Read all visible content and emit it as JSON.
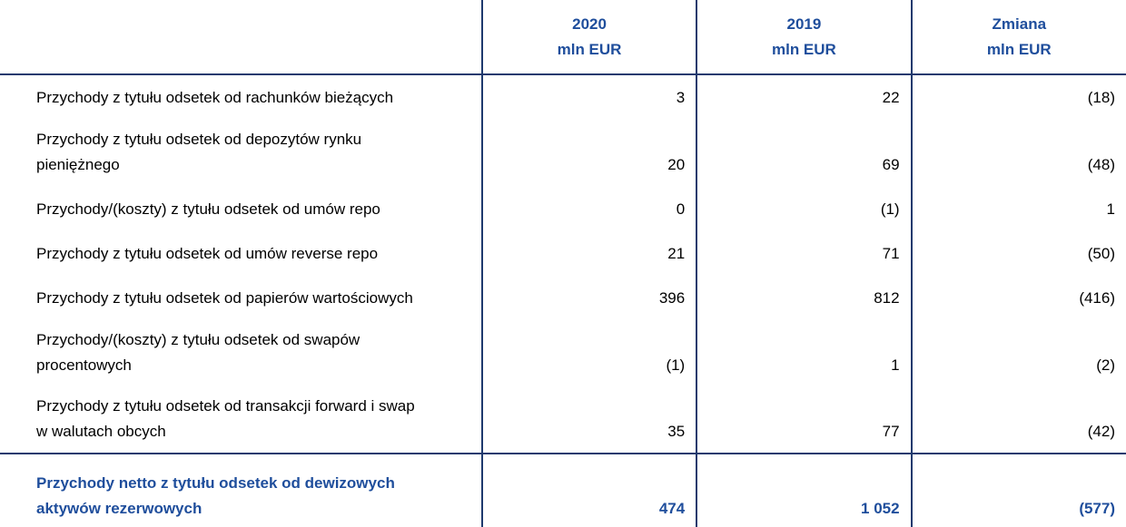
{
  "table": {
    "columns": [
      [
        "2020",
        "mln EUR"
      ],
      [
        "2019",
        "mln EUR"
      ],
      [
        "Zmiana",
        "mln EUR"
      ]
    ],
    "rows": [
      {
        "label": [
          "Przychody z tytułu odsetek od rachunków bieżących"
        ],
        "values": [
          "3",
          "22",
          "(18)"
        ]
      },
      {
        "label": [
          "Przychody z tytułu odsetek od depozytów rynku",
          "pieniężnego"
        ],
        "values": [
          "20",
          "69",
          "(48)"
        ]
      },
      {
        "label": [
          "Przychody/(koszty) z tytułu odsetek od umów repo"
        ],
        "values": [
          "0",
          "(1)",
          "1"
        ]
      },
      {
        "label": [
          "Przychody z tytułu odsetek od umów reverse repo"
        ],
        "values": [
          "21",
          "71",
          "(50)"
        ]
      },
      {
        "label": [
          "Przychody z tytułu odsetek od papierów wartościowych"
        ],
        "values": [
          "396",
          "812",
          "(416)"
        ]
      },
      {
        "label": [
          "Przychody/(koszty) z tytułu odsetek od swapów",
          "procentowych"
        ],
        "values": [
          "(1)",
          "1",
          "(2)"
        ]
      },
      {
        "label": [
          "Przychody z tytułu odsetek od transakcji forward i swap",
          "w walutach obcych"
        ],
        "values": [
          "35",
          "77",
          "(42)"
        ]
      }
    ],
    "total": {
      "label": [
        "Przychody netto z tytułu odsetek od dewizowych",
        "aktywów rezerwowych"
      ],
      "values": [
        "474",
        "1 052",
        "(577)"
      ]
    }
  }
}
